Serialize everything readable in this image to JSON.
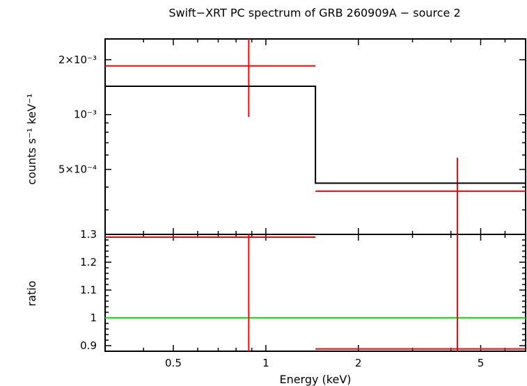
{
  "chart_data": [
    {
      "panel": "spectrum",
      "type": "line",
      "title": "Swift−XRT PC spectrum of GRB 260909A − source 2",
      "xlabel": "",
      "ylabel": "counts s⁻¹ keV⁻¹",
      "xscale": "log",
      "yscale": "log",
      "xlim": [
        0.3,
        7.0
      ],
      "ylim": [
        0.00022,
        0.0026
      ],
      "yticks": [
        {
          "value": 0.002,
          "label": "2×10⁻³"
        },
        {
          "value": 0.001,
          "label": "10⁻³"
        },
        {
          "value": 0.0005,
          "label": "5×10⁻⁴"
        }
      ],
      "series": [
        {
          "role": "data",
          "color": "#ff0000",
          "points": [
            {
              "x": 0.88,
              "xlo": 0.3,
              "xhi": 1.45,
              "y": 0.00185,
              "ylo": 0.00097,
              "yhi": 0.0026
            },
            {
              "x": 4.2,
              "xlo": 1.45,
              "xhi": 7.0,
              "y": 0.00038,
              "ylo": 0.00022,
              "yhi": 0.00058
            }
          ]
        },
        {
          "role": "model",
          "color": "#000000",
          "steps": [
            {
              "xlo": 0.3,
              "xhi": 1.45,
              "y": 0.00143
            },
            {
              "xlo": 1.45,
              "xhi": 7.0,
              "y": 0.00042
            }
          ]
        }
      ]
    },
    {
      "panel": "ratio",
      "type": "scatter",
      "xlabel": "Energy (keV)",
      "ylabel": "ratio",
      "xscale": "log",
      "xlim": [
        0.3,
        7.0
      ],
      "ylim": [
        0.88,
        1.3
      ],
      "yticks": [
        {
          "value": 0.9,
          "label": "0.9"
        },
        {
          "value": 1.0,
          "label": "1"
        },
        {
          "value": 1.1,
          "label": "1.1"
        },
        {
          "value": 1.2,
          "label": "1.2"
        },
        {
          "value": 1.3,
          "label": "1.3"
        }
      ],
      "xticks": [
        {
          "value": 0.5,
          "label": "0.5"
        },
        {
          "value": 1,
          "label": "1"
        },
        {
          "value": 2,
          "label": "2"
        },
        {
          "value": 5,
          "label": "5"
        }
      ],
      "reference_line": {
        "y": 1.0,
        "color": "#00ee00"
      },
      "series": [
        {
          "role": "data",
          "color": "#ff0000",
          "points": [
            {
              "x": 0.88,
              "xlo": 0.3,
              "xhi": 1.45,
              "y": 1.29,
              "ylo": 0.88,
              "yhi": 1.3
            },
            {
              "x": 4.2,
              "xlo": 1.45,
              "xhi": 7.0,
              "y": 0.888,
              "ylo": 0.88,
              "yhi": 1.3
            }
          ]
        }
      ]
    }
  ]
}
